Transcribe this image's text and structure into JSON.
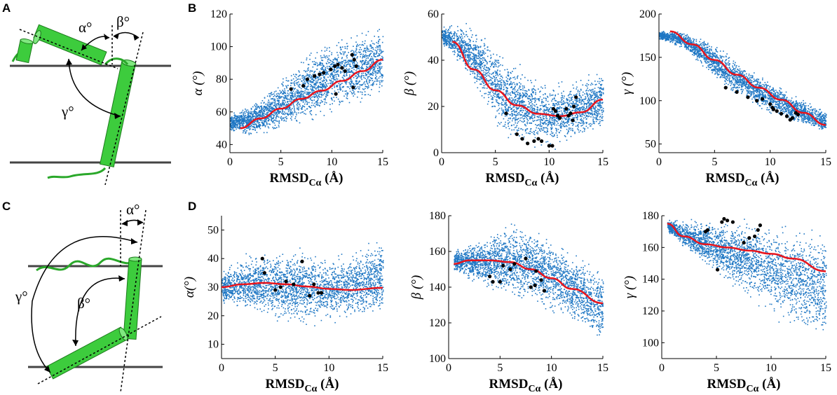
{
  "panel_labels": [
    "A",
    "B",
    "C",
    "D"
  ],
  "diagram_labels": {
    "top": {
      "alpha": "α°",
      "beta": "β°",
      "gamma": "γ°"
    },
    "bottom": {
      "alpha": "α°",
      "beta": "β°",
      "gamma": "γ°"
    }
  },
  "colors": {
    "scatter": "#1f77c4",
    "fit": "#e8141c",
    "points": "#000000",
    "helix": "#33cc33",
    "membrane": "#444444"
  },
  "chart_data": [
    {
      "type": "scatter",
      "panel": "B",
      "ylabel": "α (°)",
      "xlabel": "RMSD",
      "xlabel_sub": "Cα",
      "xlabel_unit": " (Å)",
      "xlim": [
        0,
        15
      ],
      "ylim": [
        35,
        120
      ],
      "xticks": [
        0,
        5,
        10,
        15
      ],
      "yticks": [
        40,
        60,
        80,
        100,
        120
      ],
      "fit": {
        "x": [
          1,
          3,
          5,
          7,
          9,
          11,
          13,
          15
        ],
        "y": [
          50,
          56,
          62,
          68,
          73,
          79,
          85,
          92
        ]
      },
      "cloud": {
        "upper": [
          [
            0,
            60
          ],
          [
            2,
            66
          ],
          [
            4,
            76
          ],
          [
            6,
            88
          ],
          [
            8,
            100
          ],
          [
            10,
            108
          ],
          [
            12,
            112
          ],
          [
            15,
            116
          ]
        ],
        "lower": [
          [
            0,
            47
          ],
          [
            2,
            44
          ],
          [
            4,
            45
          ],
          [
            6,
            48
          ],
          [
            8,
            52
          ],
          [
            10,
            57
          ],
          [
            12,
            62
          ],
          [
            15,
            66
          ]
        ]
      },
      "points": {
        "x": [
          6,
          7.2,
          7.6,
          8.3,
          8.8,
          9.2,
          9.9,
          10.3,
          10.6,
          11,
          11.3,
          12,
          12.2,
          12.4,
          10.4,
          12.1
        ],
        "y": [
          74,
          76,
          80,
          82,
          83,
          84,
          86,
          88,
          89,
          87,
          85,
          95,
          92,
          88,
          71,
          75
        ]
      }
    },
    {
      "type": "scatter",
      "panel": "B",
      "ylabel": "β (°)",
      "xlabel": "RMSD",
      "xlabel_sub": "Cα",
      "xlabel_unit": " (Å)",
      "xlim": [
        0,
        15
      ],
      "ylim": [
        0,
        60
      ],
      "xticks": [
        0,
        5,
        10,
        15
      ],
      "yticks": [
        0,
        20,
        40,
        60
      ],
      "fit": {
        "x": [
          1,
          3,
          5,
          7,
          9,
          11,
          13,
          15
        ],
        "y": [
          48,
          36,
          27,
          20.5,
          16.8,
          15.8,
          17.5,
          23
        ]
      },
      "cloud": {
        "upper": [
          [
            0,
            55
          ],
          [
            2,
            57
          ],
          [
            4,
            53
          ],
          [
            6,
            44
          ],
          [
            8,
            36
          ],
          [
            10,
            32
          ],
          [
            12,
            33
          ],
          [
            15,
            38
          ]
        ],
        "lower": [
          [
            0,
            47
          ],
          [
            2,
            34
          ],
          [
            4,
            18
          ],
          [
            6,
            5
          ],
          [
            8,
            2
          ],
          [
            10,
            0
          ],
          [
            12,
            3
          ],
          [
            15,
            8
          ]
        ]
      },
      "points": {
        "x": [
          6,
          7,
          7.5,
          8,
          8.6,
          9,
          9.3,
          10,
          10.3,
          10.6,
          11,
          11.8,
          12,
          12.3,
          12.5,
          10.4,
          10.8,
          11.6,
          12.2
        ],
        "y": [
          17,
          8,
          6,
          4,
          5,
          6,
          5,
          3,
          3,
          18,
          15,
          16,
          17,
          20,
          24,
          19,
          16,
          19,
          14
        ]
      }
    },
    {
      "type": "scatter",
      "panel": "B",
      "ylabel": "γ (°)",
      "xlabel": "RMSD",
      "xlabel_sub": "Cα",
      "xlabel_unit": " (Å)",
      "xlim": [
        0,
        15
      ],
      "ylim": [
        40,
        200
      ],
      "xticks": [
        0,
        5,
        10,
        15
      ],
      "yticks": [
        50,
        100,
        150,
        200
      ],
      "fit": {
        "x": [
          1,
          3,
          5,
          7,
          9,
          11,
          13,
          15
        ],
        "y": [
          180,
          165,
          147,
          130,
          115,
          101,
          86,
          72
        ]
      },
      "cloud": {
        "upper": [
          [
            0,
            182
          ],
          [
            2,
            182
          ],
          [
            4,
            174
          ],
          [
            6,
            158
          ],
          [
            8,
            140
          ],
          [
            10,
            126
          ],
          [
            12,
            110
          ],
          [
            15,
            90
          ]
        ],
        "lower": [
          [
            0,
            170
          ],
          [
            2,
            160
          ],
          [
            4,
            136
          ],
          [
            6,
            112
          ],
          [
            8,
            96
          ],
          [
            10,
            84
          ],
          [
            12,
            74
          ],
          [
            15,
            62
          ]
        ]
      },
      "points": {
        "x": [
          6,
          7,
          8,
          8.8,
          9.3,
          10,
          10.3,
          10.6,
          11,
          11.5,
          12,
          12.3,
          12.5,
          10.2,
          11.8
        ],
        "y": [
          115,
          110,
          104,
          100,
          102,
          96,
          90,
          88,
          85,
          82,
          80,
          86,
          84,
          92,
          78
        ]
      }
    },
    {
      "type": "scatter",
      "panel": "D",
      "ylabel": "α(°)",
      "xlabel": "RMSD",
      "xlabel_sub": "Cα",
      "xlabel_unit": " (Å)",
      "xlim": [
        0,
        15
      ],
      "ylim": [
        5,
        55
      ],
      "xticks": [
        0,
        5,
        10,
        15
      ],
      "yticks": [
        10,
        20,
        30,
        40,
        50
      ],
      "fit": {
        "x": [
          0,
          2,
          4,
          6,
          8,
          10,
          12,
          15
        ],
        "y": [
          30,
          31,
          31.5,
          31,
          30.2,
          29.4,
          29,
          29.8
        ]
      },
      "cloud": {
        "upper": [
          [
            0,
            36
          ],
          [
            2,
            42
          ],
          [
            4,
            44
          ],
          [
            6,
            45
          ],
          [
            8,
            44
          ],
          [
            10,
            42
          ],
          [
            12,
            44
          ],
          [
            15,
            50
          ]
        ],
        "lower": [
          [
            0,
            24
          ],
          [
            2,
            20
          ],
          [
            4,
            18
          ],
          [
            6,
            17
          ],
          [
            8,
            15
          ],
          [
            10,
            17
          ],
          [
            12,
            17
          ],
          [
            15,
            18
          ]
        ]
      },
      "points": {
        "x": [
          3.8,
          4,
          5,
          5.5,
          6,
          6.7,
          7.5,
          8.2,
          8.6,
          9,
          9.3
        ],
        "y": [
          40,
          35,
          29,
          30,
          32,
          31,
          39,
          27,
          31,
          28,
          28
        ]
      }
    },
    {
      "type": "scatter",
      "panel": "D",
      "ylabel": "β (°)",
      "xlabel": "RMSD",
      "xlabel_sub": "Cα",
      "xlabel_unit": " (Å)",
      "xlim": [
        0,
        15
      ],
      "ylim": [
        100,
        180
      ],
      "xticks": [
        0,
        5,
        10,
        15
      ],
      "yticks": [
        100,
        120,
        140,
        160,
        180
      ],
      "fit": {
        "x": [
          0.5,
          2,
          4,
          6,
          8,
          10,
          12,
          15
        ],
        "y": [
          153,
          155,
          155,
          154,
          150,
          145,
          139,
          131
        ]
      },
      "cloud": {
        "upper": [
          [
            0.5,
            162
          ],
          [
            2,
            166
          ],
          [
            4,
            172
          ],
          [
            6,
            178
          ],
          [
            8,
            177
          ],
          [
            10,
            170
          ],
          [
            12,
            163
          ],
          [
            15,
            152
          ]
        ],
        "lower": [
          [
            0.5,
            148
          ],
          [
            2,
            142
          ],
          [
            4,
            136
          ],
          [
            6,
            132
          ],
          [
            8,
            128
          ],
          [
            10,
            124
          ],
          [
            12,
            118
          ],
          [
            15,
            105
          ]
        ]
      },
      "points": {
        "x": [
          4,
          4.3,
          5,
          5.3,
          6,
          6.4,
          7.5,
          8,
          8.5,
          9,
          9.3,
          8.4
        ],
        "y": [
          146,
          143,
          143,
          152,
          150,
          153,
          156,
          140,
          149,
          144,
          138,
          141
        ]
      }
    },
    {
      "type": "scatter",
      "panel": "D",
      "ylabel": "γ (°)",
      "xlabel": "RMSD",
      "xlabel_sub": "Cα",
      "xlabel_unit": " (Å)",
      "xlim": [
        0,
        15
      ],
      "ylim": [
        90,
        180
      ],
      "xticks": [
        0,
        5,
        10,
        15
      ],
      "yticks": [
        100,
        120,
        140,
        160,
        180
      ],
      "fit": {
        "x": [
          0.5,
          2,
          4,
          6,
          8,
          10,
          12,
          15
        ],
        "y": [
          175,
          167,
          162,
          160,
          158,
          156,
          153,
          145
        ]
      },
      "cloud": {
        "upper": [
          [
            0.5,
            178
          ],
          [
            2,
            178
          ],
          [
            4,
            179
          ],
          [
            6,
            179
          ],
          [
            8,
            179
          ],
          [
            10,
            178
          ],
          [
            12,
            177
          ],
          [
            15,
            175
          ]
        ],
        "lower": [
          [
            0.5,
            170
          ],
          [
            2,
            158
          ],
          [
            4,
            146
          ],
          [
            6,
            136
          ],
          [
            8,
            126
          ],
          [
            10,
            115
          ],
          [
            12,
            104
          ],
          [
            15,
            96
          ]
        ]
      },
      "points": {
        "x": [
          4,
          4.2,
          5.1,
          5.5,
          6,
          6.5,
          7.5,
          8,
          8.5,
          8.8,
          9,
          5.7
        ],
        "y": [
          170,
          171,
          146,
          176,
          177,
          176,
          163,
          166,
          167,
          171,
          174,
          178
        ]
      }
    }
  ]
}
